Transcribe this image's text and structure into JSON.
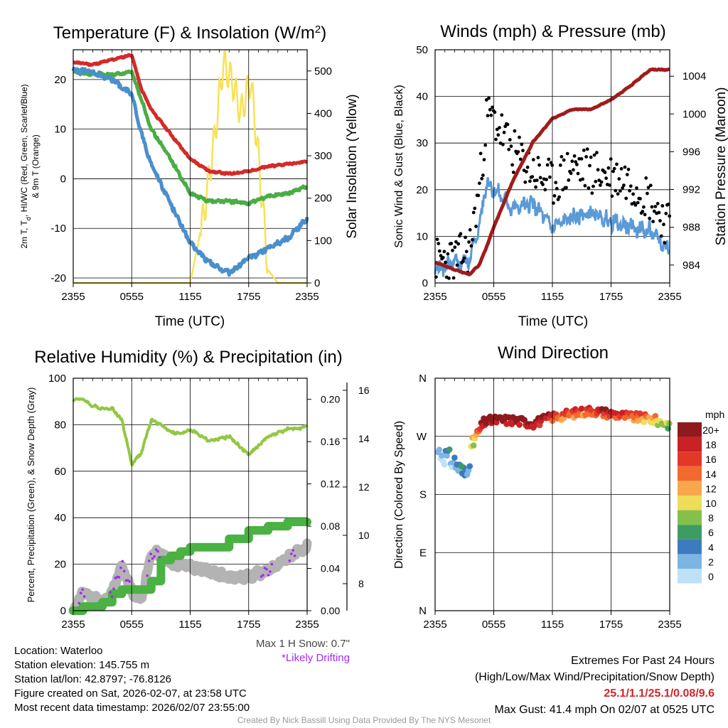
{
  "colors": {
    "temp": "#d42a2a",
    "dew": "#49ad44",
    "wc": "#4a8fcc",
    "t9": "#f39a2d",
    "solar": "#f7e258",
    "wind": "#5a9ad6",
    "gust": "#000000",
    "pressure": "#a01c1c",
    "rh": "#93c743",
    "precip": "#4ab143",
    "snow": "#b3b3b3",
    "drift": "#a32cf0"
  },
  "chart_data": [
    {
      "type": "line",
      "id": "temperature",
      "title": "Temperature (F) & Insolation (W/m",
      "title_sup": "2",
      "title_end": ")",
      "xlabel": "Time (UTC)",
      "ylabel_left_line1": "2m T, T",
      "ylabel_left_sub": "d",
      "ylabel_left_line1b": ", HI/WC (Red, Green, Scarlet/Blue)",
      "ylabel_left_line2": "& 9m T (Orange)",
      "ylabel_right": "Solar Insolation (Yellow)",
      "x_ticks": [
        "2355",
        "0555",
        "1155",
        "1755",
        "2355"
      ],
      "ylim": [
        -21,
        26
      ],
      "y_ticks": [
        -20,
        -10,
        0,
        10,
        20
      ],
      "y2lim": [
        0,
        550
      ],
      "y2_ticks": [
        0,
        100,
        200,
        300,
        400,
        500
      ],
      "x": [
        0,
        2,
        4,
        6,
        7,
        8,
        10,
        12,
        14,
        16,
        18,
        20,
        22,
        24
      ],
      "series": [
        {
          "name": "2m T (Red)",
          "values": [
            23.5,
            23,
            24,
            25,
            18,
            14,
            9,
            4,
            1.5,
            1,
            1.5,
            2.5,
            3,
            3.5
          ]
        },
        {
          "name": "Dewpoint (Green)",
          "values": [
            21.5,
            21,
            21,
            21.5,
            16,
            10,
            4,
            -3,
            -4.5,
            -4.5,
            -5,
            -3.5,
            -3,
            -1.5
          ]
        },
        {
          "name": "Wind Chill (Blue)",
          "values": [
            22,
            21.5,
            20,
            17,
            9,
            3,
            -5,
            -13,
            -17,
            -19,
            -16,
            -14,
            -12,
            -8
          ]
        }
      ],
      "solar_x": [
        0,
        12,
        13.4,
        14.6,
        15.4,
        16.4,
        17.2,
        18.2,
        19,
        20,
        21,
        22.5,
        24
      ],
      "solar_values": [
        0,
        0,
        160,
        360,
        520,
        470,
        400,
        480,
        300,
        30,
        0,
        0,
        0
      ]
    },
    {
      "type": "line",
      "id": "winds",
      "title": "Winds (mph) & Pressure (mb)",
      "xlabel": "Time (UTC)",
      "ylabel": "Sonic Wind & Gust (Blue, Black)",
      "ylabel_right": "Station Pressure (Maroon)",
      "x_ticks": [
        "2355",
        "0555",
        "1155",
        "1755",
        "2355"
      ],
      "ylim": [
        0,
        50
      ],
      "y_ticks": [
        0,
        10,
        20,
        30,
        40,
        50
      ],
      "y2lim": [
        982.1,
        1006.8
      ],
      "y2_ticks": [
        984,
        988,
        992,
        996,
        1000,
        1004
      ],
      "x": [
        0,
        2,
        3.5,
        4.5,
        5.3,
        6,
        8,
        10,
        12,
        14,
        16,
        18,
        20,
        22,
        24
      ],
      "series": [
        {
          "name": "Sonic Wind (Blue)",
          "values": [
            3,
            4,
            5,
            12,
            22,
            20,
            16,
            17,
            12,
            14,
            15,
            13,
            12,
            11,
            7
          ]
        },
        {
          "name": "Gust (Black)",
          "values": [
            5,
            5,
            7,
            20,
            36,
            35,
            28,
            24,
            21,
            25,
            24,
            23,
            22,
            18,
            12
          ]
        },
        {
          "name": "Station Pressure (Maroon)",
          "values": [
            984.3,
            983.5,
            983,
            984,
            986,
            988,
            993,
            997,
            999.5,
            1000.5,
            1000.5,
            1001.5,
            1003,
            1004.7,
            1004.7
          ]
        }
      ]
    },
    {
      "type": "line",
      "id": "humidity",
      "title": "Relative Humidity (%) & Precipitation (in)",
      "ylabel": "Percent, Precipitation (Green), & Snow Depth (Gray)",
      "x_ticks": [
        "2355",
        "0555",
        "1155",
        "1755",
        "2355"
      ],
      "ylim": [
        0,
        100
      ],
      "y_ticks": [
        0,
        20,
        40,
        60,
        80,
        100
      ],
      "precip_ticks": [
        "0.00",
        "0.04",
        "0.08",
        "0.12",
        "0.16",
        "0.20"
      ],
      "snow_ticks": [
        "8",
        "10",
        "12",
        "14",
        "16"
      ],
      "x": [
        0,
        1,
        2,
        3,
        4,
        5,
        6,
        7,
        8,
        9,
        10,
        11,
        12,
        14,
        16,
        18,
        20,
        22,
        24
      ],
      "series": [
        {
          "name": "RH (Green)",
          "values": [
            91,
            91,
            88,
            87,
            87,
            82,
            63,
            68,
            82,
            80,
            77,
            76,
            78,
            73,
            75,
            67,
            75,
            78,
            79
          ]
        },
        {
          "name": "Precipitation (Green)",
          "values": [
            0,
            0.004,
            0.004,
            0.008,
            0.016,
            0.02,
            0.02,
            0.02,
            0.028,
            0.048,
            0.052,
            0.056,
            0.06,
            0.06,
            0.068,
            0.076,
            0.08,
            0.084,
            0.084
          ]
        },
        {
          "name": "Snow Depth (Gray)",
          "values": [
            0,
            8,
            5,
            4,
            8,
            20,
            8,
            5,
            24,
            25,
            20,
            20,
            19,
            17,
            14,
            15,
            17,
            23,
            27
          ]
        }
      ]
    },
    {
      "type": "scatter",
      "id": "direction",
      "title": "Wind Direction",
      "ylabel": "Direction (Colored By Speed)",
      "x_ticks": [
        "2355",
        "0555",
        "1155",
        "1755",
        "2355"
      ],
      "y_ticks": [
        "N",
        "E",
        "S",
        "W",
        "N"
      ],
      "ylim": [
        0,
        360
      ],
      "legend_title": "mph",
      "legend_labels": [
        "20+",
        "18",
        "16",
        "14",
        "12",
        "10",
        "8",
        "6",
        "4",
        "2",
        "0"
      ],
      "legend_colors": [
        "#8e1a1e",
        "#c92126",
        "#e2382a",
        "#f26a2e",
        "#f8a84c",
        "#eedd5a",
        "#85c04a",
        "#3f9b66",
        "#3d7bbf",
        "#7cb5e3",
        "#bde2f8"
      ],
      "x": [
        0,
        1,
        2,
        3,
        3.5,
        4,
        5,
        6,
        8,
        10,
        12,
        14,
        16,
        18,
        20,
        22,
        24
      ],
      "values": [
        250,
        240,
        230,
        210,
        235,
        265,
        292,
        295,
        295,
        290,
        300,
        305,
        310,
        305,
        300,
        297,
        288
      ],
      "speeds": [
        2,
        2,
        3,
        4,
        6,
        10,
        20,
        20,
        20,
        20,
        16,
        14,
        16,
        18,
        14,
        12,
        8
      ]
    }
  ],
  "footer": {
    "max_snow": "Max 1 H Snow: 0.7\"",
    "drift": "*Likely Drifting",
    "location": "Location: Waterloo",
    "elevation": "Station elevation: 145.755 m",
    "latlon": "Station lat/lon: 42.8797; -76.8126",
    "created": "Figure created on Sat, 2026-02-07, at 23:58 UTC",
    "recent": "Most recent data timestamp: 2026/02/07 23:55:00",
    "extremes_title": "Extremes For Past 24 Hours",
    "extremes_sub": "(High/Low/Max Wind/Precipitation/Snow Depth)",
    "extremes_values": "25.1/1.1/25.1/0.08/9.6",
    "max_gust": "Max Gust: 41.4 mph On 02/07 at 0525 UTC",
    "credit": "Created By Nick Bassill Using Data Provided By The NYS Mesonet"
  }
}
